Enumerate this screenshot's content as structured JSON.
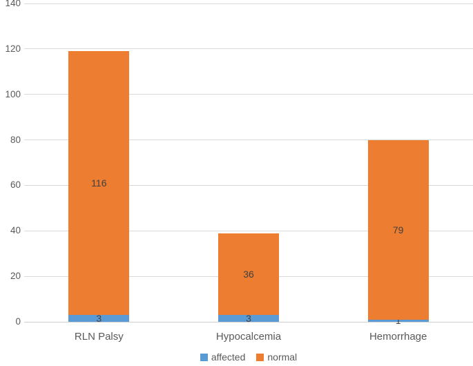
{
  "chart_data": {
    "type": "bar",
    "variant": "stacked-column",
    "title": "",
    "xlabel": "",
    "ylabel": "",
    "categories": [
      "RLN Palsy",
      "Hypocalcemia",
      "Hemorrhage"
    ],
    "series": [
      {
        "name": "affected",
        "color": "#5B9BD5",
        "values": [
          3,
          3,
          1
        ]
      },
      {
        "name": "normal",
        "color": "#ED7D31",
        "values": [
          116,
          36,
          79
        ]
      }
    ],
    "totals": [
      119,
      39,
      80
    ],
    "ylim": [
      0,
      140
    ],
    "yticks": [
      0,
      20,
      40,
      60,
      80,
      100,
      120,
      140
    ],
    "grid": true,
    "legend_position": "bottom",
    "styles": {
      "gridline_color": "#D9D9D9",
      "axis_text_color": "#595959",
      "data_label_color": "#404040",
      "background": "#FFFFFF"
    }
  }
}
